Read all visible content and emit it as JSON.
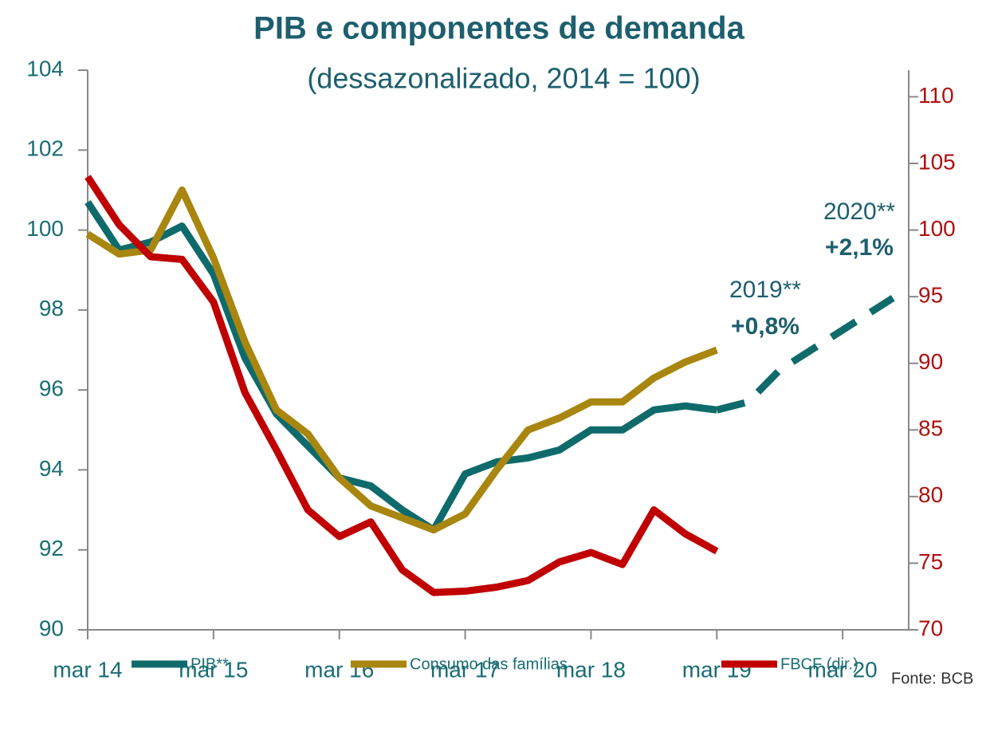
{
  "chart_data": {
    "type": "line",
    "title": "PIB e componentes de demanda",
    "subtitle": "(dessazonalizado, 2014 = 100)",
    "x": [
      0,
      1,
      2,
      3,
      4,
      5,
      6,
      7,
      8,
      9,
      10,
      11,
      12,
      13,
      14,
      15,
      16,
      17,
      18,
      19,
      20
    ],
    "xlim": [
      0,
      26.1
    ],
    "xticks": [
      {
        "value": 0,
        "label": "mar 14"
      },
      {
        "value": 4,
        "label": "mar 15"
      },
      {
        "value": 8,
        "label": "mar 16"
      },
      {
        "value": 12,
        "label": "mar 17"
      },
      {
        "value": 16,
        "label": "mar 18"
      },
      {
        "value": 20,
        "label": "mar 19"
      },
      {
        "value": 24,
        "label": "mar 20"
      }
    ],
    "ylim": [
      90,
      104
    ],
    "yticks": [
      90,
      92,
      94,
      96,
      98,
      100,
      102,
      104
    ],
    "y2lim": [
      70,
      112
    ],
    "y2ticks": [
      70,
      75,
      80,
      85,
      90,
      95,
      100,
      105,
      110
    ],
    "series": [
      {
        "name": "PIB**",
        "color": "#0f6b6b",
        "values": [
          100.7,
          99.5,
          99.7,
          100.1,
          98.9,
          96.8,
          95.4,
          94.6,
          93.8,
          93.6,
          93.0,
          92.5,
          93.9,
          94.2,
          94.3,
          94.5,
          95.0,
          95.0,
          95.5,
          95.6,
          95.5
        ]
      },
      {
        "name": "Consumo das famílias",
        "color": "#a8860f",
        "values": [
          99.9,
          99.4,
          99.5,
          101.0,
          99.3,
          97.2,
          95.5,
          94.9,
          93.8,
          93.1,
          92.8,
          92.5,
          92.9,
          94.0,
          95.0,
          95.3,
          95.7,
          95.7,
          96.3,
          96.7,
          97.0
        ]
      },
      {
        "name": "FBCF (dir.)",
        "color": "#c00000",
        "axis": "y2",
        "values": [
          104,
          100.4,
          98,
          97.8,
          94.6,
          87.8,
          83.5,
          79,
          77,
          78.1,
          74.5,
          72.8,
          72.9,
          73.2,
          73.7,
          75.1,
          75.8,
          74.9,
          79,
          77.2,
          75.9
        ]
      }
    ],
    "projection": {
      "color": "#0f6b6b",
      "dashed": true,
      "x": [
        20,
        21,
        22,
        23,
        24,
        25.6
      ],
      "values": [
        95.5,
        95.7,
        96.5,
        97.0,
        97.5,
        98.3
      ]
    },
    "annotations": [
      {
        "year": "2019**",
        "growth": "+0,8%"
      },
      {
        "year": "2020**",
        "growth": "+2,1%"
      }
    ],
    "source": "Fonte: BCB"
  }
}
